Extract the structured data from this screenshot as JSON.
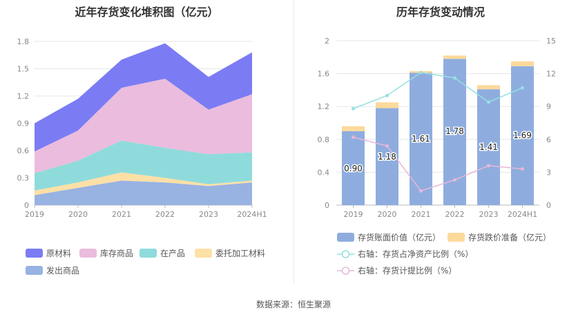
{
  "source_label": "数据来源：恒生聚源",
  "colors": {
    "raw_material": "#7b7cf4",
    "inventory_goods": "#ebbcdd",
    "wip": "#8fdbdc",
    "consign": "#fde0a6",
    "shipped": "#98b2e2",
    "bar_book": "#8eadde",
    "bar_reserve": "#fcd99b",
    "line_ratio": "#96e0e1",
    "line_provision": "#e8b7d9"
  },
  "chart_data": [
    {
      "type": "area",
      "stacked": true,
      "title": "近年存货变化堆积图（亿元）",
      "categories": [
        "2019",
        "2020",
        "2021",
        "2022",
        "2023",
        "2024H1"
      ],
      "ylim": [
        0,
        1.8
      ],
      "yticks": [
        "0",
        "0.3",
        "0.6",
        "0.9",
        "1.2",
        "1.5",
        "1.8"
      ],
      "grid": true,
      "legend_position": "bottom",
      "series": [
        {
          "name": "发出商品",
          "color_key": "shipped",
          "values": [
            0.11,
            0.19,
            0.27,
            0.25,
            0.21,
            0.25
          ]
        },
        {
          "name": "委托加工材料",
          "color_key": "consign",
          "values": [
            0.05,
            0.06,
            0.09,
            0.05,
            0.02,
            0.02
          ]
        },
        {
          "name": "在产品",
          "color_key": "wip",
          "values": [
            0.19,
            0.24,
            0.35,
            0.33,
            0.33,
            0.31
          ]
        },
        {
          "name": "库存商品",
          "color_key": "inventory_goods",
          "values": [
            0.24,
            0.33,
            0.58,
            0.76,
            0.49,
            0.64
          ]
        },
        {
          "name": "原材料",
          "color_key": "raw_material",
          "values": [
            0.31,
            0.35,
            0.31,
            0.39,
            0.36,
            0.46
          ]
        }
      ],
      "legend_order": [
        "原材料",
        "库存商品",
        "在产品",
        "委托加工材料",
        "发出商品"
      ]
    },
    {
      "type": "bar",
      "stacked": true,
      "title": "历年存货变动情况",
      "categories": [
        "2019",
        "2020",
        "2021",
        "2022",
        "2023",
        "2024H1"
      ],
      "ylim": [
        0,
        2
      ],
      "yticks": [
        "0",
        "0.4",
        "0.8",
        "1.2",
        "1.6",
        "2"
      ],
      "y2lim": [
        0,
        15
      ],
      "y2ticks": [
        "0",
        "3",
        "6",
        "9",
        "12",
        "15"
      ],
      "grid": true,
      "legend_position": "bottom",
      "series": [
        {
          "name": "存货账面价值（亿元）",
          "kind": "bar",
          "color_key": "bar_book",
          "values": [
            0.9,
            1.18,
            1.61,
            1.78,
            1.41,
            1.69
          ],
          "labels": [
            "0.90",
            "1.18",
            "1.61",
            "1.78",
            "1.41",
            "1.69"
          ]
        },
        {
          "name": "存货跌价准备（亿元）",
          "kind": "bar",
          "color_key": "bar_reserve",
          "values": [
            0.06,
            0.07,
            0.02,
            0.04,
            0.05,
            0.06
          ]
        },
        {
          "name": "右轴：存货占净资产比例（%）",
          "kind": "line",
          "axis": "right",
          "color_key": "line_ratio",
          "values": [
            8.8,
            10.0,
            12.1,
            11.6,
            9.4,
            10.7
          ]
        },
        {
          "name": "右轴：存货计提比例（%）",
          "kind": "line",
          "axis": "right",
          "color_key": "line_provision",
          "values": [
            6.2,
            5.4,
            1.3,
            2.3,
            3.6,
            3.3
          ]
        }
      ]
    }
  ]
}
